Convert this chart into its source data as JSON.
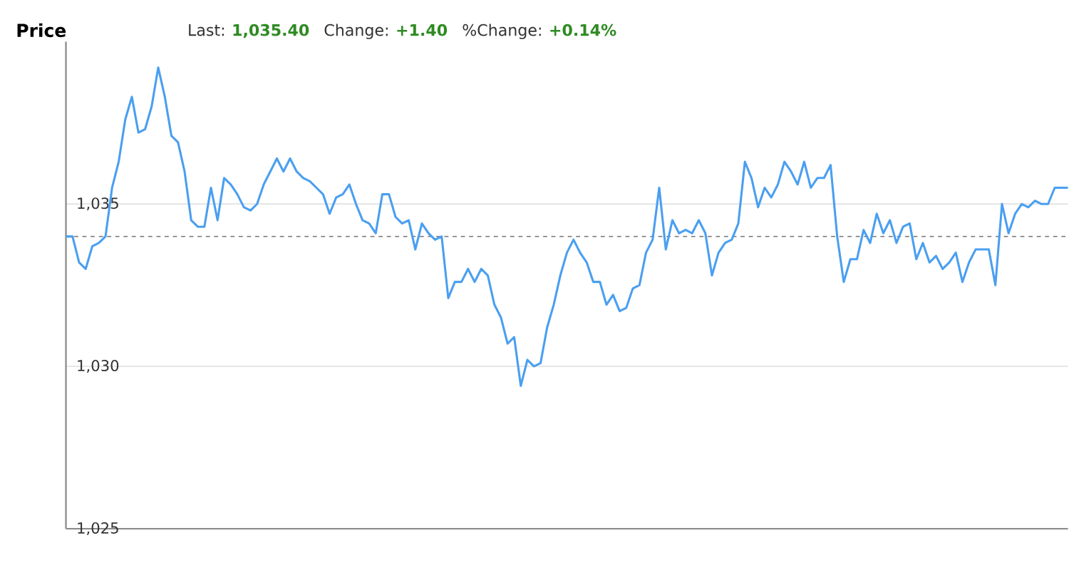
{
  "chart_data": {
    "type": "line",
    "title": "Price",
    "annotations": [
      "Last:",
      "1,035.40",
      "Change:",
      "+1.40",
      "%Change:",
      "+0.14%"
    ],
    "categories": [
      null,
      null,
      null,
      null,
      null,
      null,
      null,
      null,
      null,
      null,
      null,
      null,
      null,
      null,
      null,
      null,
      null,
      null,
      null,
      null,
      null,
      null,
      null,
      null,
      null,
      null,
      null,
      null,
      null,
      null,
      null,
      null,
      null,
      null,
      null,
      null,
      null,
      null,
      null,
      null,
      null,
      null,
      null,
      null,
      null,
      null,
      null,
      null,
      null,
      null,
      null,
      null,
      null,
      null,
      null,
      null,
      null,
      null,
      null,
      null,
      null,
      null,
      null,
      null,
      null,
      null,
      null,
      null,
      null,
      null,
      null,
      null,
      null,
      null,
      null,
      null,
      null,
      null,
      null,
      null,
      null,
      null,
      null,
      null,
      null,
      null,
      null,
      null,
      null,
      null,
      null,
      null,
      null,
      null,
      null,
      null,
      null,
      null,
      null,
      null,
      null,
      null,
      null,
      null,
      null,
      null,
      null,
      null,
      null,
      null,
      null,
      null,
      null,
      null,
      null,
      null,
      null,
      null,
      null,
      null,
      null,
      null,
      null,
      null,
      null,
      null,
      null,
      null,
      null,
      null,
      null,
      null,
      null,
      null,
      null,
      null,
      null,
      null,
      null,
      null,
      null,
      null,
      null,
      null,
      null,
      null,
      null,
      null,
      null,
      null,
      null,
      null,
      null
    ],
    "series": [
      {
        "color": "#4a9ff0",
        "values": [
          1034.0,
          1034.0,
          1033.2,
          1033.0,
          1033.7,
          1033.8,
          1034.0,
          1035.5,
          1036.3,
          1037.6,
          1038.3,
          1037.2,
          1037.3,
          1038.0,
          1039.2,
          1038.3,
          1037.1,
          1036.9,
          1036.0,
          1034.5,
          1034.3,
          1034.3,
          1035.5,
          1034.5,
          1035.8,
          1035.6,
          1035.3,
          1034.9,
          1034.8,
          1035.0,
          1035.6,
          1036.0,
          1036.4,
          1036.0,
          1036.4,
          1036.0,
          1035.8,
          1035.7,
          1035.5,
          1035.3,
          1034.7,
          1035.2,
          1035.3,
          1035.6,
          1035.0,
          1034.5,
          1034.4,
          1034.1,
          1035.3,
          1035.3,
          1034.6,
          1034.4,
          1034.5,
          1033.6,
          1034.4,
          1034.1,
          1033.9,
          1034.0,
          1032.1,
          1032.6,
          1032.6,
          1033.0,
          1032.6,
          1033.0,
          1032.8,
          1031.9,
          1031.5,
          1030.7,
          1030.9,
          1029.4,
          1030.2,
          1030.0,
          1030.1,
          1031.2,
          1031.9,
          1032.8,
          1033.5,
          1033.9,
          1033.5,
          1033.2,
          1032.6,
          1032.6,
          1031.9,
          1032.2,
          1031.7,
          1031.8,
          1032.4,
          1032.5,
          1033.5,
          1033.9,
          1035.5,
          1033.6,
          1034.5,
          1034.1,
          1034.2,
          1034.1,
          1034.5,
          1034.1,
          1032.8,
          1033.5,
          1033.8,
          1033.9,
          1034.4,
          1036.3,
          1035.8,
          1034.9,
          1035.5,
          1035.2,
          1035.6,
          1036.3,
          1036.0,
          1035.6,
          1036.3,
          1035.5,
          1035.8,
          1035.8,
          1036.2,
          1034.0,
          1032.6,
          1033.3,
          1033.3,
          1034.2,
          1033.8,
          1034.7,
          1034.1,
          1034.5,
          1033.8,
          1034.3,
          1034.4,
          1033.3,
          1033.8,
          1033.2,
          1033.4,
          1033.0,
          1033.2,
          1033.5,
          1032.6,
          1033.2,
          1033.6,
          1033.6,
          1033.6,
          1032.5,
          1035.0,
          1034.1,
          1034.7,
          1035.0,
          1034.9,
          1035.1,
          1035.0,
          1035.0,
          1035.5,
          1035.5,
          1035.5
        ]
      }
    ],
    "ylim": [
      1025,
      1040
    ],
    "yticks": [
      {
        "value": 1025,
        "label": "1,025"
      },
      {
        "value": 1030,
        "label": "1,030"
      },
      {
        "value": 1035,
        "label": "1,035"
      }
    ],
    "tick_labels": "y",
    "grid": "y",
    "marker": "none",
    "line_style": "solid",
    "ref_lines": [
      {
        "axis": "y",
        "value": 1034,
        "color": "#888888",
        "line_style": "dashed"
      }
    ]
  }
}
